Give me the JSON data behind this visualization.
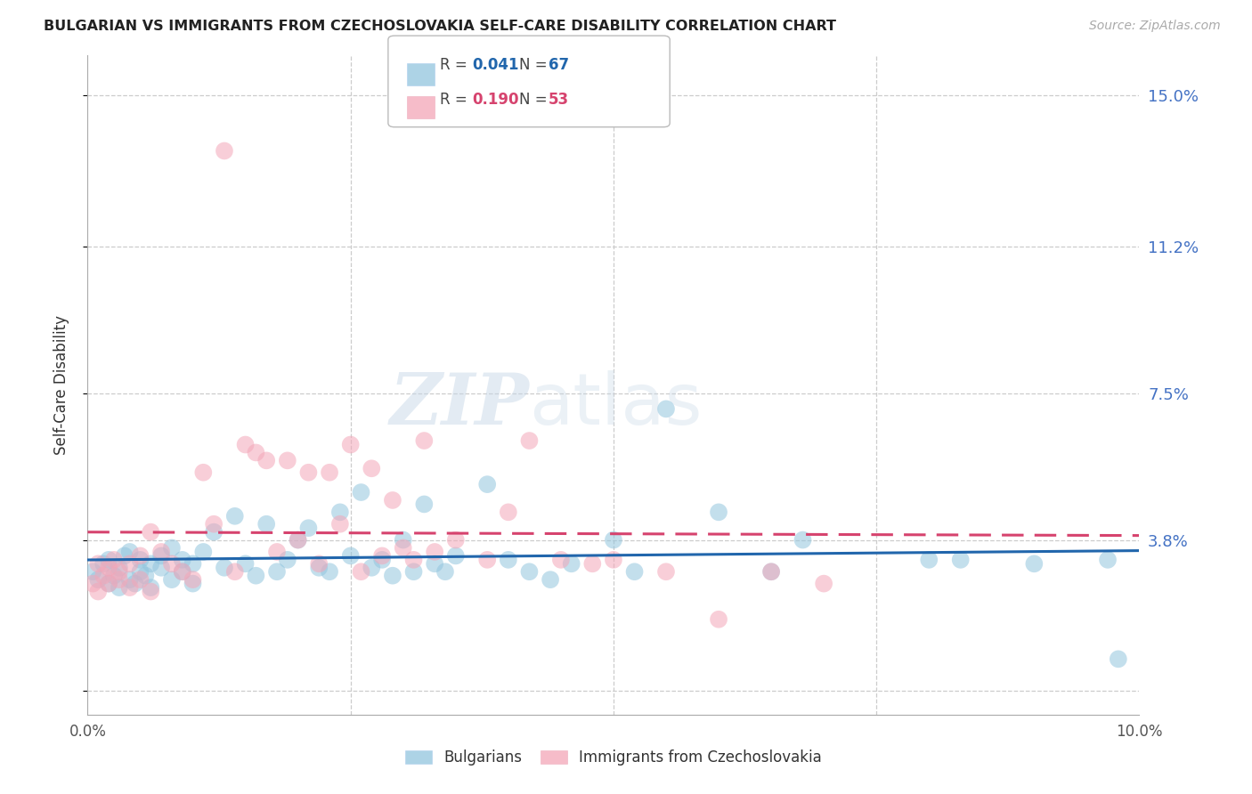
{
  "title": "BULGARIAN VS IMMIGRANTS FROM CZECHOSLOVAKIA SELF-CARE DISABILITY CORRELATION CHART",
  "source": "Source: ZipAtlas.com",
  "ylabel": "Self-Care Disability",
  "yticks": [
    0.0,
    0.038,
    0.075,
    0.112,
    0.15
  ],
  "ytick_labels": [
    "",
    "3.8%",
    "7.5%",
    "11.2%",
    "15.0%"
  ],
  "xlim": [
    0.0,
    0.1
  ],
  "ylim": [
    -0.006,
    0.16
  ],
  "label1": "Bulgarians",
  "label2": "Immigrants from Czechoslovakia",
  "color1": "#92c5de",
  "color2": "#f4a6b8",
  "line_color1": "#2166ac",
  "line_color2": "#d6436e",
  "watermark_zip": "ZIP",
  "watermark_atlas": "atlas",
  "background_color": "#ffffff",
  "bulgarians_x": [
    0.0005,
    0.001,
    0.0015,
    0.002,
    0.002,
    0.0025,
    0.003,
    0.003,
    0.0035,
    0.004,
    0.004,
    0.0045,
    0.005,
    0.005,
    0.0055,
    0.006,
    0.006,
    0.007,
    0.007,
    0.008,
    0.008,
    0.009,
    0.009,
    0.01,
    0.01,
    0.011,
    0.012,
    0.013,
    0.014,
    0.015,
    0.016,
    0.017,
    0.018,
    0.019,
    0.02,
    0.021,
    0.022,
    0.023,
    0.024,
    0.025,
    0.026,
    0.027,
    0.028,
    0.029,
    0.03,
    0.031,
    0.032,
    0.033,
    0.034,
    0.035,
    0.038,
    0.04,
    0.042,
    0.044,
    0.046,
    0.05,
    0.052,
    0.055,
    0.06,
    0.065,
    0.068,
    0.08,
    0.083,
    0.09,
    0.097,
    0.098
  ],
  "bulgarians_y": [
    0.03,
    0.028,
    0.032,
    0.027,
    0.033,
    0.029,
    0.031,
    0.026,
    0.034,
    0.028,
    0.035,
    0.027,
    0.03,
    0.033,
    0.029,
    0.032,
    0.026,
    0.031,
    0.034,
    0.028,
    0.036,
    0.03,
    0.033,
    0.032,
    0.027,
    0.035,
    0.04,
    0.031,
    0.044,
    0.032,
    0.029,
    0.042,
    0.03,
    0.033,
    0.038,
    0.041,
    0.031,
    0.03,
    0.045,
    0.034,
    0.05,
    0.031,
    0.033,
    0.029,
    0.038,
    0.03,
    0.047,
    0.032,
    0.03,
    0.034,
    0.052,
    0.033,
    0.03,
    0.028,
    0.032,
    0.038,
    0.03,
    0.071,
    0.045,
    0.03,
    0.038,
    0.033,
    0.033,
    0.032,
    0.033,
    0.008
  ],
  "czecho_x": [
    0.0005,
    0.001,
    0.001,
    0.0015,
    0.002,
    0.002,
    0.0025,
    0.003,
    0.003,
    0.004,
    0.004,
    0.005,
    0.005,
    0.006,
    0.006,
    0.007,
    0.008,
    0.009,
    0.01,
    0.011,
    0.012,
    0.013,
    0.014,
    0.015,
    0.016,
    0.017,
    0.018,
    0.019,
    0.02,
    0.021,
    0.022,
    0.023,
    0.024,
    0.025,
    0.026,
    0.027,
    0.028,
    0.029,
    0.03,
    0.031,
    0.032,
    0.033,
    0.035,
    0.038,
    0.04,
    0.042,
    0.045,
    0.048,
    0.05,
    0.055,
    0.06,
    0.065,
    0.07
  ],
  "czecho_y": [
    0.027,
    0.025,
    0.032,
    0.029,
    0.031,
    0.027,
    0.033,
    0.028,
    0.03,
    0.032,
    0.026,
    0.034,
    0.028,
    0.04,
    0.025,
    0.035,
    0.032,
    0.03,
    0.028,
    0.055,
    0.042,
    0.136,
    0.03,
    0.062,
    0.06,
    0.058,
    0.035,
    0.058,
    0.038,
    0.055,
    0.032,
    0.055,
    0.042,
    0.062,
    0.03,
    0.056,
    0.034,
    0.048,
    0.036,
    0.033,
    0.063,
    0.035,
    0.038,
    0.033,
    0.045,
    0.063,
    0.033,
    0.032,
    0.033,
    0.03,
    0.018,
    0.03,
    0.027
  ]
}
